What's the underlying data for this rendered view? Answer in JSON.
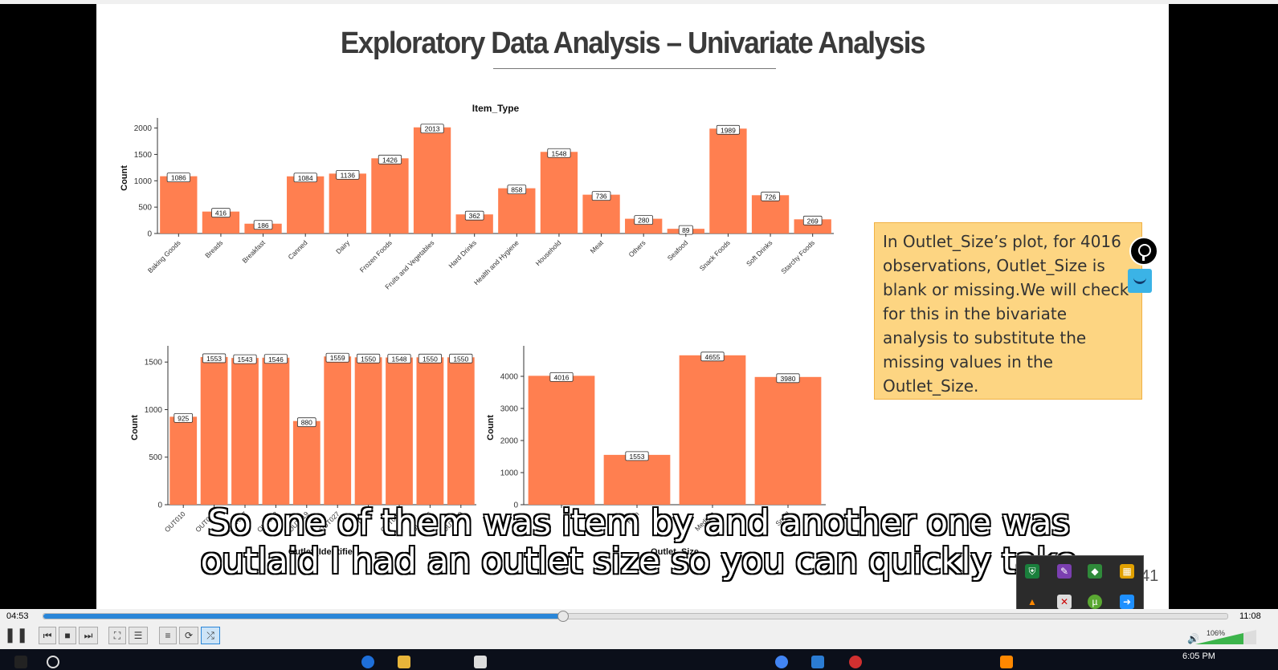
{
  "slide": {
    "title": "Exploratory Data Analysis – Univariate Analysis",
    "note": "In Outlet_Size’s plot, for 4016 observations, Outlet_Size is blank or missing.We will check for this in the bivariate analysis to substitute the missing values in the Outlet_Size.",
    "page_number": "41"
  },
  "subtitle": {
    "line1": "So one of them was item by and another one was",
    "line2": "outlaid I had an outlet size so you can quickly take"
  },
  "player": {
    "elapsed": "04:53",
    "total": "11:08",
    "progress": 0.438,
    "volume": "106%",
    "clock": "6:05 PM"
  },
  "colors": {
    "bar": "#ff7f50",
    "note_bg": "#fdd582",
    "seek": "#2a86d8"
  },
  "chart_data": [
    {
      "type": "bar",
      "title": "Item_Type",
      "xlabel": "",
      "ylabel": "Count",
      "ylim": [
        0,
        2100
      ],
      "yticks": [
        0,
        500,
        1000,
        1500,
        2000
      ],
      "categories": [
        "Baking Goods",
        "Breads",
        "Breakfast",
        "Canned",
        "Dairy",
        "Frozen Foods",
        "Fruits and Vegetables",
        "Hard Drinks",
        "Health and Hygiene",
        "Household",
        "Meat",
        "Others",
        "Seafood",
        "Snack Foods",
        "Soft Drinks",
        "Starchy Foods"
      ],
      "values": [
        1086,
        416,
        186,
        1084,
        1136,
        1426,
        2013,
        362,
        858,
        1548,
        736,
        280,
        89,
        1989,
        726,
        269
      ]
    },
    {
      "type": "bar",
      "title": "",
      "xlabel": "Outlet_Identifier",
      "ylabel": "Count",
      "ylim": [
        0,
        1620
      ],
      "yticks": [
        0,
        500,
        1000,
        1500
      ],
      "categories": [
        "OUT010",
        "OUT013",
        "OUT017",
        "OUT018",
        "OUT019",
        "OUT027",
        "OUT035",
        "OUT045",
        "OUT046",
        "OUT049"
      ],
      "values": [
        925,
        1553,
        1543,
        1546,
        880,
        1559,
        1550,
        1548,
        1550,
        1550
      ]
    },
    {
      "type": "bar",
      "title": "",
      "xlabel": "Outlet_Size",
      "ylabel": "Count",
      "ylim": [
        0,
        4800
      ],
      "yticks": [
        0,
        1000,
        2000,
        3000,
        4000
      ],
      "categories": [
        "",
        "High",
        "Medium",
        "Small"
      ],
      "values": [
        4016,
        1553,
        4655,
        3980
      ]
    }
  ]
}
